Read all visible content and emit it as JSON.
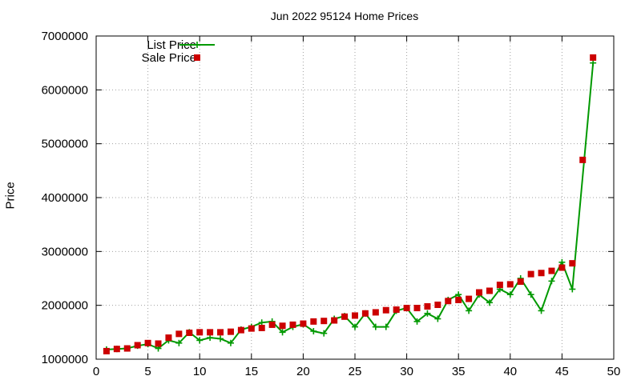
{
  "chart_data": {
    "type": "line",
    "title": "Jun 2022 95124 Home Prices",
    "xlabel": "",
    "ylabel": "Price",
    "xlim": [
      0,
      50
    ],
    "ylim": [
      1000000,
      7000000
    ],
    "xticks": [
      0,
      5,
      10,
      15,
      20,
      25,
      30,
      35,
      40,
      45,
      50
    ],
    "yticks": [
      1000000,
      2000000,
      3000000,
      4000000,
      5000000,
      6000000,
      7000000
    ],
    "grid": true,
    "legend_position": "top-left",
    "series": [
      {
        "name": "List Price",
        "style": "line-plus",
        "color": "#009900",
        "points": [
          [
            1,
            1180000
          ],
          [
            2,
            1190000
          ],
          [
            3,
            1200000
          ],
          [
            4,
            1250000
          ],
          [
            5,
            1280000
          ],
          [
            6,
            1200000
          ],
          [
            7,
            1350000
          ],
          [
            8,
            1300000
          ],
          [
            9,
            1500000
          ],
          [
            10,
            1350000
          ],
          [
            11,
            1400000
          ],
          [
            12,
            1380000
          ],
          [
            13,
            1300000
          ],
          [
            14,
            1550000
          ],
          [
            15,
            1600000
          ],
          [
            16,
            1680000
          ],
          [
            17,
            1700000
          ],
          [
            18,
            1500000
          ],
          [
            19,
            1600000
          ],
          [
            20,
            1650000
          ],
          [
            21,
            1520000
          ],
          [
            22,
            1480000
          ],
          [
            23,
            1750000
          ],
          [
            24,
            1800000
          ],
          [
            25,
            1600000
          ],
          [
            26,
            1850000
          ],
          [
            27,
            1600000
          ],
          [
            28,
            1600000
          ],
          [
            29,
            1900000
          ],
          [
            30,
            1950000
          ],
          [
            31,
            1700000
          ],
          [
            32,
            1850000
          ],
          [
            33,
            1750000
          ],
          [
            34,
            2100000
          ],
          [
            35,
            2200000
          ],
          [
            36,
            1900000
          ],
          [
            37,
            2200000
          ],
          [
            38,
            2050000
          ],
          [
            39,
            2300000
          ],
          [
            40,
            2200000
          ],
          [
            41,
            2500000
          ],
          [
            42,
            2200000
          ],
          [
            43,
            1900000
          ],
          [
            44,
            2450000
          ],
          [
            45,
            2800000
          ],
          [
            46,
            2300000
          ],
          [
            48,
            6500000
          ]
        ]
      },
      {
        "name": "Sale Price",
        "style": "square",
        "color": "#cc0000",
        "points": [
          [
            1,
            1150000
          ],
          [
            2,
            1190000
          ],
          [
            3,
            1200000
          ],
          [
            4,
            1260000
          ],
          [
            5,
            1300000
          ],
          [
            6,
            1290000
          ],
          [
            7,
            1400000
          ],
          [
            8,
            1470000
          ],
          [
            9,
            1490000
          ],
          [
            10,
            1500000
          ],
          [
            11,
            1500000
          ],
          [
            12,
            1500000
          ],
          [
            13,
            1510000
          ],
          [
            14,
            1540000
          ],
          [
            15,
            1570000
          ],
          [
            16,
            1580000
          ],
          [
            17,
            1640000
          ],
          [
            18,
            1620000
          ],
          [
            19,
            1640000
          ],
          [
            20,
            1660000
          ],
          [
            21,
            1700000
          ],
          [
            22,
            1710000
          ],
          [
            23,
            1720000
          ],
          [
            24,
            1790000
          ],
          [
            25,
            1810000
          ],
          [
            26,
            1850000
          ],
          [
            27,
            1870000
          ],
          [
            28,
            1910000
          ],
          [
            29,
            1920000
          ],
          [
            30,
            1950000
          ],
          [
            31,
            1950000
          ],
          [
            32,
            1980000
          ],
          [
            33,
            2010000
          ],
          [
            34,
            2080000
          ],
          [
            35,
            2100000
          ],
          [
            36,
            2120000
          ],
          [
            37,
            2240000
          ],
          [
            38,
            2270000
          ],
          [
            39,
            2380000
          ],
          [
            40,
            2390000
          ],
          [
            41,
            2440000
          ],
          [
            42,
            2580000
          ],
          [
            43,
            2600000
          ],
          [
            44,
            2640000
          ],
          [
            45,
            2700000
          ],
          [
            46,
            2780000
          ],
          [
            47,
            4700000
          ],
          [
            48,
            6600000
          ]
        ]
      }
    ]
  }
}
